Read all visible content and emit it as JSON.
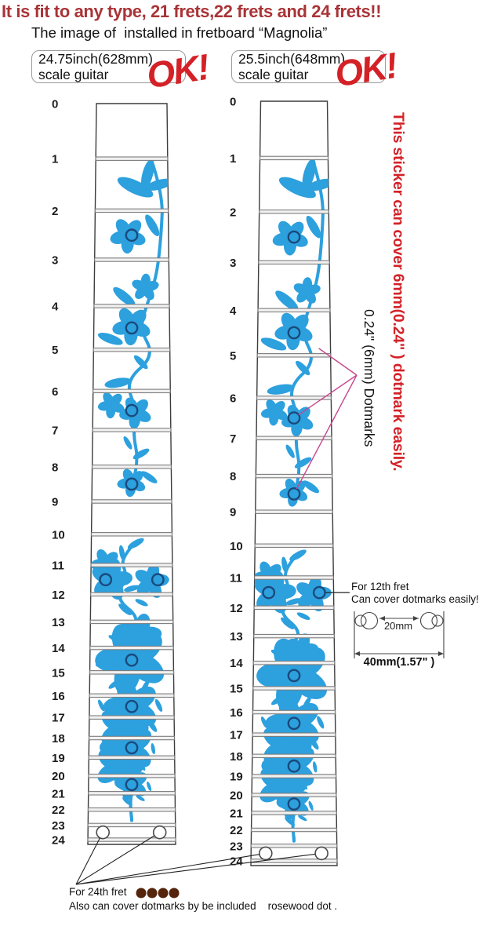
{
  "header": {
    "title": "It is fit to any type, 21 frets,22 frets and 24 frets!!",
    "subtitle": "The image of  installed in fretboard “Magnolia”"
  },
  "scale_labels": [
    {
      "line1": "24.75inch(628mm)",
      "line2": "scale guitar",
      "stamp": "OK!"
    },
    {
      "line1": "25.5inch(648mm)",
      "line2": "scale guitar",
      "stamp": "OK!"
    }
  ],
  "fretboard": {
    "fret_labels": [
      "0",
      "1",
      "2",
      "3",
      "4",
      "5",
      "6",
      "7",
      "8",
      "9",
      "10",
      "11",
      "12",
      "13",
      "14",
      "15",
      "16",
      "17",
      "18",
      "19",
      "20",
      "21",
      "22",
      "23",
      "24"
    ],
    "single_dot_frets": [
      3,
      5,
      7,
      9,
      15,
      17,
      19,
      21
    ],
    "double_dot_frets": [
      12
    ],
    "open_dot_frets": [
      24
    ]
  },
  "annotations": {
    "side_note_red": "This sticker can cover 6mm(0.24\" ) dotmark easily.",
    "side_note_black": "0.24\"  (6mm) Dotmarks",
    "fret12_note": {
      "line1": "For 12th fret",
      "line2": "Can cover dotmarks easily!"
    },
    "size_diagram": {
      "inner_label": "20mm",
      "outer_label": "40mm(1.57\" )"
    },
    "fret24_note": {
      "line1": "For 24th fret",
      "line2": "Also can cover dotmarks by be included    rosewood dot .",
      "rosewood_dot_count": 4
    }
  },
  "colors": {
    "title_red": "#a93336",
    "accent_red": "#d42127",
    "flower_blue": "#2da0de",
    "dot_ring_navy": "#1a4a7c",
    "pink_line": "#c8478d",
    "rosewood_brown": "#54250c",
    "fret_wire_edge": "#7d7d7d",
    "fret_wire_fill": "#f1f1f1",
    "board_edge": "#3c3c3c"
  }
}
